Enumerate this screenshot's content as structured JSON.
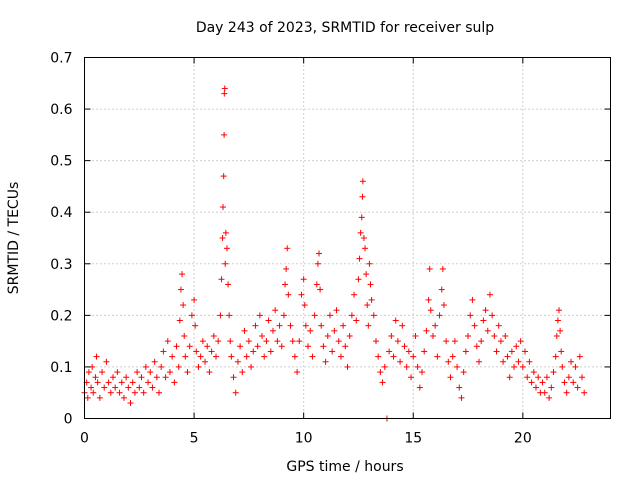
{
  "chart_data": {
    "type": "scatter",
    "title": "Day 243 of 2023, SRMTID for receiver sulp",
    "xlabel": "GPS time / hours",
    "ylabel": "SRMTID / TECUs",
    "xlim": [
      0,
      24
    ],
    "ylim": [
      0,
      0.7
    ],
    "x_ticks": [
      0,
      5,
      10,
      15,
      20
    ],
    "y_ticks": [
      0,
      0.1,
      0.2,
      0.3,
      0.4,
      0.5,
      0.6,
      0.7
    ],
    "x_tick_labels": [
      "0",
      "5",
      "10",
      "15",
      "20"
    ],
    "y_tick_labels": [
      "0",
      "0.1",
      "0.2",
      "0.3",
      "0.4",
      "0.5",
      "0.6",
      "0.7"
    ],
    "grid": true,
    "marker": "+",
    "color": "#ff0000",
    "series": [
      {
        "name": "SRMTID",
        "points": [
          [
            0.0,
            0.05
          ],
          [
            0.1,
            0.07
          ],
          [
            0.15,
            0.04
          ],
          [
            0.2,
            0.09
          ],
          [
            0.3,
            0.06
          ],
          [
            0.35,
            0.1
          ],
          [
            0.4,
            0.05
          ],
          [
            0.5,
            0.08
          ],
          [
            0.55,
            0.12
          ],
          [
            0.6,
            0.07
          ],
          [
            0.7,
            0.04
          ],
          [
            0.8,
            0.09
          ],
          [
            0.9,
            0.06
          ],
          [
            1.0,
            0.11
          ],
          [
            1.1,
            0.07
          ],
          [
            1.2,
            0.05
          ],
          [
            1.3,
            0.08
          ],
          [
            1.4,
            0.06
          ],
          [
            1.5,
            0.09
          ],
          [
            1.6,
            0.05
          ],
          [
            1.7,
            0.07
          ],
          [
            1.8,
            0.04
          ],
          [
            1.9,
            0.08
          ],
          [
            2.0,
            0.06
          ],
          [
            2.1,
            0.03
          ],
          [
            2.2,
            0.07
          ],
          [
            2.3,
            0.05
          ],
          [
            2.4,
            0.09
          ],
          [
            2.5,
            0.06
          ],
          [
            2.6,
            0.08
          ],
          [
            2.7,
            0.05
          ],
          [
            2.8,
            0.1
          ],
          [
            2.9,
            0.07
          ],
          [
            3.0,
            0.09
          ],
          [
            3.1,
            0.06
          ],
          [
            3.2,
            0.11
          ],
          [
            3.3,
            0.08
          ],
          [
            3.4,
            0.05
          ],
          [
            3.5,
            0.1
          ],
          [
            3.6,
            0.13
          ],
          [
            3.7,
            0.08
          ],
          [
            3.8,
            0.15
          ],
          [
            3.9,
            0.09
          ],
          [
            4.0,
            0.12
          ],
          [
            4.1,
            0.07
          ],
          [
            4.2,
            0.14
          ],
          [
            4.3,
            0.1
          ],
          [
            4.35,
            0.19
          ],
          [
            4.4,
            0.25
          ],
          [
            4.45,
            0.28
          ],
          [
            4.5,
            0.22
          ],
          [
            4.55,
            0.16
          ],
          [
            4.6,
            0.12
          ],
          [
            4.7,
            0.09
          ],
          [
            4.8,
            0.14
          ],
          [
            4.9,
            0.2
          ],
          [
            5.0,
            0.23
          ],
          [
            5.05,
            0.18
          ],
          [
            5.1,
            0.13
          ],
          [
            5.2,
            0.1
          ],
          [
            5.3,
            0.12
          ],
          [
            5.4,
            0.15
          ],
          [
            5.5,
            0.11
          ],
          [
            5.6,
            0.14
          ],
          [
            5.7,
            0.09
          ],
          [
            5.8,
            0.13
          ],
          [
            5.9,
            0.16
          ],
          [
            6.0,
            0.12
          ],
          [
            6.1,
            0.15
          ],
          [
            6.2,
            0.2
          ],
          [
            6.25,
            0.27
          ],
          [
            6.3,
            0.35
          ],
          [
            6.32,
            0.41
          ],
          [
            6.35,
            0.47
          ],
          [
            6.37,
            0.55
          ],
          [
            6.38,
            0.63
          ],
          [
            6.4,
            0.64
          ],
          [
            6.42,
            0.3
          ],
          [
            6.45,
            0.36
          ],
          [
            6.5,
            0.33
          ],
          [
            6.55,
            0.26
          ],
          [
            6.6,
            0.2
          ],
          [
            6.65,
            0.15
          ],
          [
            6.7,
            0.12
          ],
          [
            6.8,
            0.08
          ],
          [
            6.9,
            0.05
          ],
          [
            7.0,
            0.11
          ],
          [
            7.1,
            0.14
          ],
          [
            7.2,
            0.09
          ],
          [
            7.3,
            0.17
          ],
          [
            7.4,
            0.12
          ],
          [
            7.5,
            0.15
          ],
          [
            7.6,
            0.1
          ],
          [
            7.7,
            0.13
          ],
          [
            7.8,
            0.18
          ],
          [
            7.9,
            0.14
          ],
          [
            8.0,
            0.2
          ],
          [
            8.1,
            0.16
          ],
          [
            8.2,
            0.12
          ],
          [
            8.3,
            0.15
          ],
          [
            8.4,
            0.19
          ],
          [
            8.5,
            0.13
          ],
          [
            8.6,
            0.17
          ],
          [
            8.7,
            0.21
          ],
          [
            8.8,
            0.15
          ],
          [
            8.9,
            0.18
          ],
          [
            9.0,
            0.14
          ],
          [
            9.1,
            0.2
          ],
          [
            9.15,
            0.26
          ],
          [
            9.2,
            0.29
          ],
          [
            9.25,
            0.33
          ],
          [
            9.3,
            0.24
          ],
          [
            9.4,
            0.18
          ],
          [
            9.5,
            0.15
          ],
          [
            9.6,
            0.12
          ],
          [
            9.7,
            0.09
          ],
          [
            9.8,
            0.15
          ],
          [
            9.9,
            0.24
          ],
          [
            10.0,
            0.27
          ],
          [
            10.05,
            0.22
          ],
          [
            10.1,
            0.18
          ],
          [
            10.2,
            0.14
          ],
          [
            10.3,
            0.17
          ],
          [
            10.4,
            0.12
          ],
          [
            10.5,
            0.2
          ],
          [
            10.6,
            0.26
          ],
          [
            10.65,
            0.3
          ],
          [
            10.7,
            0.32
          ],
          [
            10.75,
            0.25
          ],
          [
            10.8,
            0.18
          ],
          [
            10.9,
            0.14
          ],
          [
            11.0,
            0.11
          ],
          [
            11.1,
            0.16
          ],
          [
            11.2,
            0.2
          ],
          [
            11.3,
            0.13
          ],
          [
            11.4,
            0.17
          ],
          [
            11.5,
            0.21
          ],
          [
            11.6,
            0.15
          ],
          [
            11.7,
            0.12
          ],
          [
            11.8,
            0.18
          ],
          [
            11.9,
            0.14
          ],
          [
            12.0,
            0.1
          ],
          [
            12.1,
            0.16
          ],
          [
            12.2,
            0.2
          ],
          [
            12.3,
            0.24
          ],
          [
            12.4,
            0.19
          ],
          [
            12.5,
            0.27
          ],
          [
            12.55,
            0.31
          ],
          [
            12.6,
            0.36
          ],
          [
            12.65,
            0.39
          ],
          [
            12.68,
            0.43
          ],
          [
            12.7,
            0.46
          ],
          [
            12.75,
            0.35
          ],
          [
            12.8,
            0.33
          ],
          [
            12.85,
            0.28
          ],
          [
            12.9,
            0.22
          ],
          [
            12.95,
            0.18
          ],
          [
            13.0,
            0.3
          ],
          [
            13.05,
            0.26
          ],
          [
            13.1,
            0.23
          ],
          [
            13.2,
            0.2
          ],
          [
            13.3,
            0.15
          ],
          [
            13.4,
            0.12
          ],
          [
            13.5,
            0.09
          ],
          [
            13.6,
            0.07
          ],
          [
            13.7,
            0.1
          ],
          [
            13.8,
            0.0
          ],
          [
            13.9,
            0.13
          ],
          [
            14.0,
            0.16
          ],
          [
            14.1,
            0.12
          ],
          [
            14.2,
            0.19
          ],
          [
            14.3,
            0.15
          ],
          [
            14.4,
            0.11
          ],
          [
            14.5,
            0.18
          ],
          [
            14.6,
            0.14
          ],
          [
            14.7,
            0.1
          ],
          [
            14.8,
            0.13
          ],
          [
            14.9,
            0.08
          ],
          [
            15.0,
            0.12
          ],
          [
            15.1,
            0.16
          ],
          [
            15.2,
            0.1
          ],
          [
            15.3,
            0.06
          ],
          [
            15.4,
            0.09
          ],
          [
            15.5,
            0.13
          ],
          [
            15.6,
            0.17
          ],
          [
            15.7,
            0.23
          ],
          [
            15.75,
            0.29
          ],
          [
            15.8,
            0.21
          ],
          [
            15.9,
            0.16
          ],
          [
            16.0,
            0.18
          ],
          [
            16.1,
            0.12
          ],
          [
            16.2,
            0.2
          ],
          [
            16.3,
            0.25
          ],
          [
            16.35,
            0.29
          ],
          [
            16.4,
            0.22
          ],
          [
            16.5,
            0.15
          ],
          [
            16.6,
            0.11
          ],
          [
            16.7,
            0.08
          ],
          [
            16.8,
            0.12
          ],
          [
            16.9,
            0.15
          ],
          [
            17.0,
            0.1
          ],
          [
            17.1,
            0.06
          ],
          [
            17.2,
            0.04
          ],
          [
            17.3,
            0.09
          ],
          [
            17.4,
            0.13
          ],
          [
            17.5,
            0.16
          ],
          [
            17.6,
            0.2
          ],
          [
            17.7,
            0.23
          ],
          [
            17.8,
            0.18
          ],
          [
            17.9,
            0.14
          ],
          [
            18.0,
            0.11
          ],
          [
            18.1,
            0.15
          ],
          [
            18.2,
            0.19
          ],
          [
            18.3,
            0.21
          ],
          [
            18.4,
            0.17
          ],
          [
            18.5,
            0.24
          ],
          [
            18.6,
            0.2
          ],
          [
            18.7,
            0.16
          ],
          [
            18.8,
            0.13
          ],
          [
            18.9,
            0.18
          ],
          [
            19.0,
            0.15
          ],
          [
            19.1,
            0.11
          ],
          [
            19.2,
            0.16
          ],
          [
            19.3,
            0.12
          ],
          [
            19.4,
            0.08
          ],
          [
            19.5,
            0.13
          ],
          [
            19.6,
            0.1
          ],
          [
            19.7,
            0.14
          ],
          [
            19.8,
            0.11
          ],
          [
            19.9,
            0.15
          ],
          [
            20.0,
            0.1
          ],
          [
            20.1,
            0.13
          ],
          [
            20.2,
            0.08
          ],
          [
            20.3,
            0.11
          ],
          [
            20.4,
            0.07
          ],
          [
            20.5,
            0.09
          ],
          [
            20.6,
            0.06
          ],
          [
            20.7,
            0.08
          ],
          [
            20.8,
            0.05
          ],
          [
            20.9,
            0.07
          ],
          [
            21.0,
            0.05
          ],
          [
            21.1,
            0.08
          ],
          [
            21.2,
            0.04
          ],
          [
            21.3,
            0.06
          ],
          [
            21.4,
            0.09
          ],
          [
            21.5,
            0.12
          ],
          [
            21.55,
            0.16
          ],
          [
            21.6,
            0.19
          ],
          [
            21.65,
            0.21
          ],
          [
            21.7,
            0.17
          ],
          [
            21.75,
            0.13
          ],
          [
            21.8,
            0.1
          ],
          [
            21.9,
            0.07
          ],
          [
            22.0,
            0.05
          ],
          [
            22.1,
            0.08
          ],
          [
            22.2,
            0.11
          ],
          [
            22.3,
            0.07
          ],
          [
            22.4,
            0.1
          ],
          [
            22.5,
            0.06
          ],
          [
            22.6,
            0.12
          ],
          [
            22.7,
            0.08
          ],
          [
            22.8,
            0.05
          ]
        ]
      }
    ]
  }
}
